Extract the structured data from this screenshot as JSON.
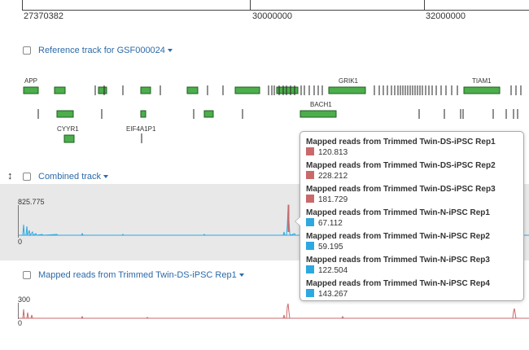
{
  "ruler": {
    "ticks": [
      "27370382",
      "30000000",
      "32000000"
    ]
  },
  "reference_track": {
    "title": "Reference track for GSF000024",
    "genes": [
      "APP",
      "GRIK1",
      "TIAM1",
      "BACH1",
      "CYYR1",
      "EIF4A1P1"
    ]
  },
  "combined_track": {
    "title": "Combined track",
    "ymax": "825.775",
    "ymin": "0",
    "color": "#2da8e0"
  },
  "ds_track": {
    "title": "Mapped reads from Trimmed Twin-DS-iPSC Rep1",
    "ymax": "300",
    "ymin": "0",
    "color": "#c9696b"
  },
  "tooltip": {
    "entries": [
      {
        "series": "Mapped reads from Trimmed Twin-DS-iPSC Rep1",
        "value": "120.813",
        "color": "#c9696b"
      },
      {
        "series": "Mapped reads from Trimmed Twin-DS-iPSC Rep2",
        "value": "228.212",
        "color": "#c9696b"
      },
      {
        "series": "Mapped reads from Trimmed Twin-DS-iPSC Rep3",
        "value": "181.729",
        "color": "#c9696b"
      },
      {
        "series": "Mapped reads from Trimmed Twin-N-iPSC Rep1",
        "value": "67.112",
        "color": "#2da8e0"
      },
      {
        "series": "Mapped reads from Trimmed Twin-N-iPSC Rep2",
        "value": "59.195",
        "color": "#2da8e0"
      },
      {
        "series": "Mapped reads from Trimmed Twin-N-iPSC Rep3",
        "value": "122.504",
        "color": "#2da8e0"
      },
      {
        "series": "Mapped reads from Trimmed Twin-N-iPSC Rep4",
        "value": "143.267",
        "color": "#2da8e0"
      }
    ]
  }
}
